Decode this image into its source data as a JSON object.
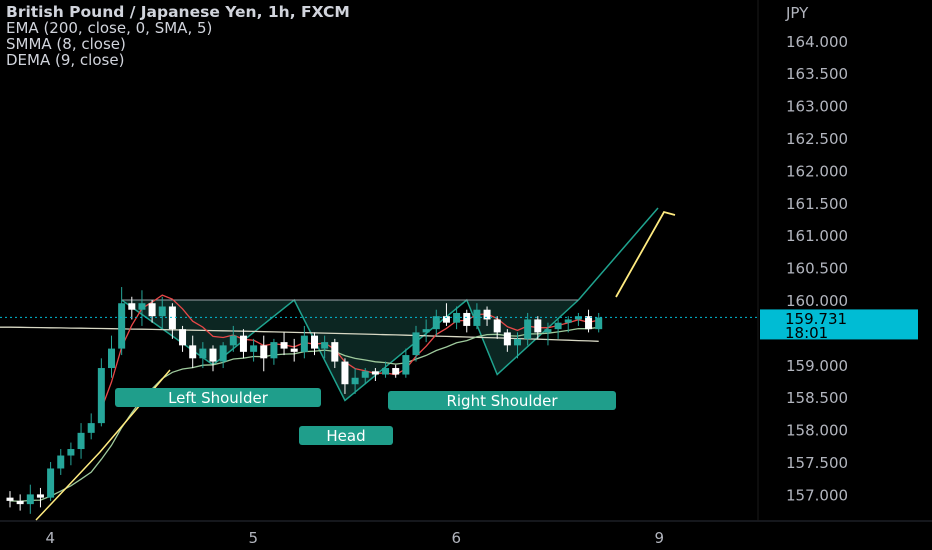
{
  "legend": {
    "title": "British Pound / Japanese Yen, 1h, FXCM",
    "line2": "EMA (200, close, 0, SMA, 5)",
    "line3": "SMMA (8, close)",
    "line4": "DEMA (9, close)"
  },
  "axis": {
    "currency": "JPY",
    "price_labels": [
      "164.000",
      "163.500",
      "163.000",
      "162.500",
      "162.000",
      "161.500",
      "161.000",
      "160.500",
      "160.000",
      "159.500",
      "159.000",
      "158.500",
      "158.000",
      "157.500",
      "157.000"
    ],
    "time_labels": [
      "4",
      "5",
      "6",
      "9"
    ],
    "current_price": "159.731",
    "countdown": "18:01"
  },
  "annotations": {
    "left_shoulder": "Left Shoulder",
    "head": "Head",
    "right_shoulder": "Right Shoulder"
  },
  "colors": {
    "up": "#26a69a",
    "down": "#ffffff",
    "ema200": "#d8d8c4",
    "smma": "#9ec99c",
    "dema": "#e84848",
    "yellow": "#ffeb80",
    "pattern": "#1fa38f",
    "price_badge": "#00bcd4",
    "label_bg": "#1f9e8b"
  },
  "chart_data": {
    "type": "candlestick",
    "symbol": "GBPJPY",
    "timeframe": "1h",
    "y_range": [
      156.6,
      164.6
    ],
    "x_range": [
      0,
      86
    ],
    "day_markers": [
      {
        "label": "4",
        "index": 2
      },
      {
        "label": "5",
        "index": 22
      },
      {
        "label": "6",
        "index": 42
      },
      {
        "label": "9",
        "index": 62
      }
    ],
    "candles": [
      [
        156.95,
        157.05,
        156.8,
        156.9
      ],
      [
        156.9,
        157.0,
        156.75,
        156.85
      ],
      [
        156.85,
        157.15,
        156.7,
        157.0
      ],
      [
        157.0,
        157.1,
        156.8,
        156.95
      ],
      [
        156.95,
        157.5,
        156.9,
        157.4
      ],
      [
        157.4,
        157.7,
        157.3,
        157.6
      ],
      [
        157.6,
        157.8,
        157.45,
        157.7
      ],
      [
        157.7,
        158.1,
        157.55,
        157.95
      ],
      [
        157.95,
        158.25,
        157.85,
        158.1
      ],
      [
        158.1,
        159.1,
        158.05,
        158.95
      ],
      [
        158.95,
        159.45,
        158.8,
        159.25
      ],
      [
        159.25,
        160.2,
        159.15,
        159.95
      ],
      [
        159.95,
        160.05,
        159.7,
        159.85
      ],
      [
        159.85,
        160.15,
        159.6,
        159.95
      ],
      [
        159.95,
        160.0,
        159.65,
        159.75
      ],
      [
        159.75,
        160.05,
        159.55,
        159.9
      ],
      [
        159.9,
        159.95,
        159.4,
        159.55
      ],
      [
        159.55,
        159.6,
        159.2,
        159.3
      ],
      [
        159.3,
        159.45,
        158.95,
        159.1
      ],
      [
        159.1,
        159.35,
        158.95,
        159.25
      ],
      [
        159.25,
        159.3,
        158.9,
        159.05
      ],
      [
        159.05,
        159.35,
        158.95,
        159.3
      ],
      [
        159.3,
        159.6,
        159.2,
        159.45
      ],
      [
        159.45,
        159.55,
        159.1,
        159.2
      ],
      [
        159.2,
        159.4,
        159.05,
        159.3
      ],
      [
        159.3,
        159.45,
        158.9,
        159.1
      ],
      [
        159.1,
        159.4,
        159.0,
        159.35
      ],
      [
        159.35,
        159.5,
        159.15,
        159.25
      ],
      [
        159.25,
        159.4,
        159.05,
        159.2
      ],
      [
        159.2,
        159.6,
        159.1,
        159.45
      ],
      [
        159.45,
        159.5,
        159.15,
        159.25
      ],
      [
        159.25,
        159.45,
        159.1,
        159.35
      ],
      [
        159.35,
        159.4,
        158.95,
        159.05
      ],
      [
        159.05,
        159.1,
        158.55,
        158.7
      ],
      [
        158.7,
        158.95,
        158.55,
        158.8
      ],
      [
        158.8,
        158.95,
        158.7,
        158.9
      ],
      [
        158.9,
        158.95,
        158.75,
        158.85
      ],
      [
        158.85,
        159.05,
        158.8,
        158.95
      ],
      [
        158.95,
        159.0,
        158.8,
        158.85
      ],
      [
        158.85,
        159.25,
        158.8,
        159.15
      ],
      [
        159.15,
        159.6,
        159.05,
        159.5
      ],
      [
        159.5,
        159.7,
        159.35,
        159.55
      ],
      [
        159.55,
        159.85,
        159.45,
        159.75
      ],
      [
        159.75,
        159.95,
        159.6,
        159.65
      ],
      [
        159.65,
        159.9,
        159.55,
        159.8
      ],
      [
        159.8,
        159.85,
        159.5,
        159.6
      ],
      [
        159.6,
        159.95,
        159.55,
        159.85
      ],
      [
        159.85,
        159.9,
        159.6,
        159.7
      ],
      [
        159.7,
        159.75,
        159.4,
        159.5
      ],
      [
        159.5,
        159.55,
        159.2,
        159.3
      ],
      [
        159.3,
        159.5,
        159.1,
        159.4
      ],
      [
        159.4,
        159.8,
        159.3,
        159.7
      ],
      [
        159.7,
        159.75,
        159.4,
        159.5
      ],
      [
        159.5,
        159.65,
        159.3,
        159.55
      ],
      [
        159.55,
        159.7,
        159.4,
        159.65
      ],
      [
        159.65,
        159.75,
        159.5,
        159.7
      ],
      [
        159.7,
        159.8,
        159.6,
        159.75
      ],
      [
        159.75,
        159.85,
        159.5,
        159.55
      ],
      [
        159.55,
        159.8,
        159.5,
        159.73
      ]
    ]
  }
}
